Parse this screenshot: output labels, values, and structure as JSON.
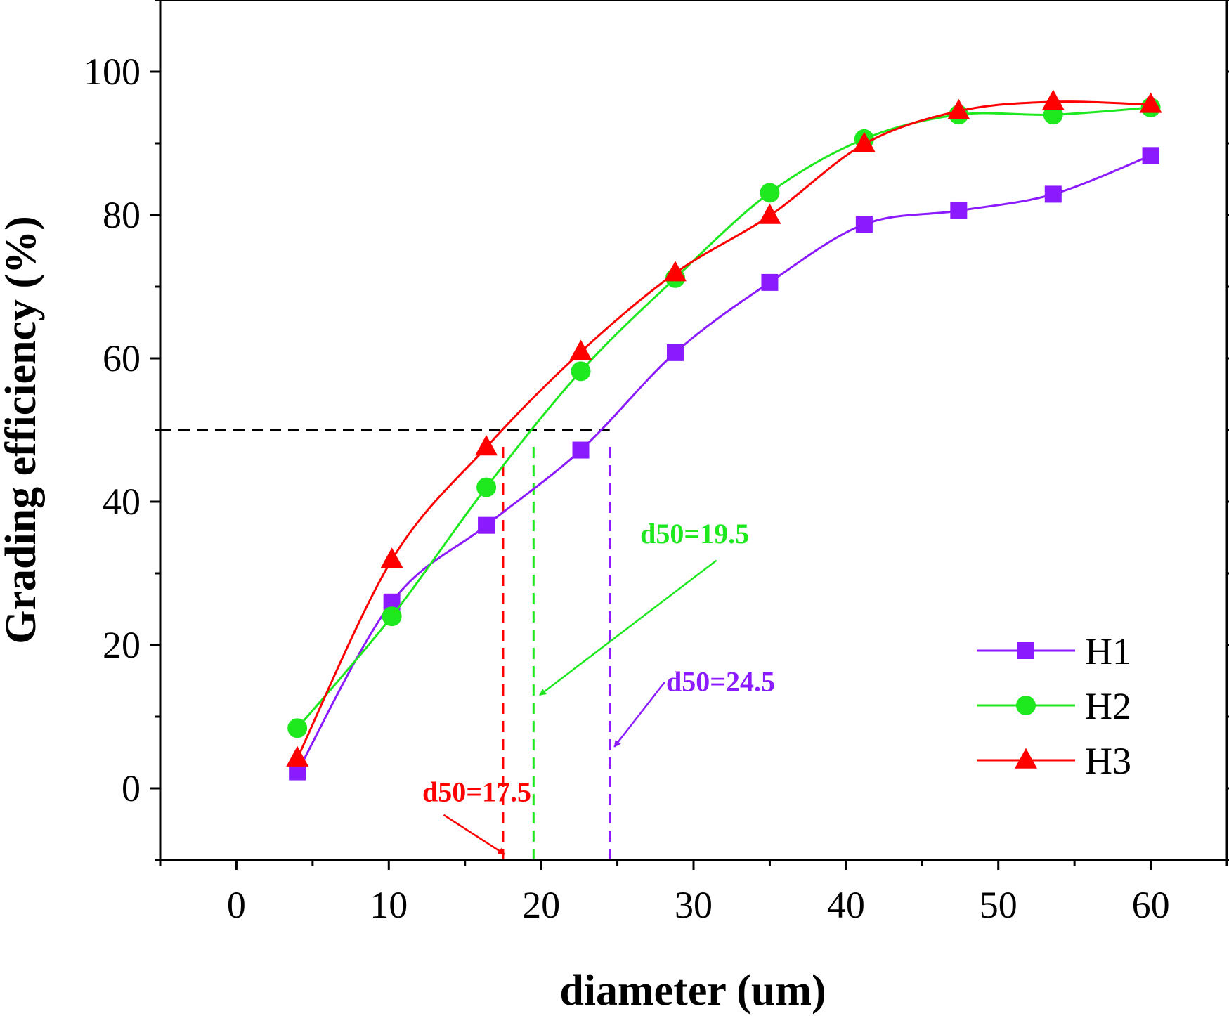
{
  "chart_data": {
    "type": "line",
    "xlabel": "diameter (um)",
    "ylabel": "Grading efficiency (%)",
    "xlim": [
      -5,
      65
    ],
    "ylim": [
      -10,
      110
    ],
    "xticks": [
      0,
      10,
      20,
      30,
      40,
      50,
      60
    ],
    "yticks": [
      0,
      20,
      40,
      60,
      80,
      100
    ],
    "grid": false,
    "legend_position": "bottom-right",
    "series": [
      {
        "name": "H1",
        "color": "#8B1AFF",
        "marker": "square",
        "x": [
          4,
          10.2,
          16.4,
          22.6,
          28.8,
          35,
          41.2,
          47.4,
          53.6,
          60
        ],
        "y": [
          2.3,
          26,
          36.7,
          47.2,
          60.8,
          70.6,
          78.7,
          80.6,
          82.9,
          88.3
        ]
      },
      {
        "name": "H2",
        "color": "#1EE81E",
        "marker": "circle",
        "x": [
          4,
          10.2,
          16.4,
          22.6,
          28.8,
          35,
          41.2,
          47.4,
          53.6,
          60
        ],
        "y": [
          8.4,
          24,
          42,
          58.2,
          71.2,
          83.1,
          90.6,
          94,
          94,
          95
        ]
      },
      {
        "name": "H3",
        "color": "#FF0000",
        "marker": "triangle",
        "x": [
          4,
          10.2,
          16.4,
          22.6,
          28.8,
          35,
          41.2,
          47.4,
          53.6,
          60
        ],
        "y": [
          4.2,
          31.9,
          47.6,
          60.9,
          71.9,
          79.9,
          89.9,
          94.5,
          95.8,
          95.4
        ]
      }
    ],
    "reference_lines": [
      {
        "type": "horizontal",
        "y": 50,
        "x_from": -5,
        "x_to": 24.5,
        "color": "#000000"
      },
      {
        "type": "vertical",
        "x": 17.5,
        "y_from": -10,
        "y_to": 48,
        "color": "#FF0000"
      },
      {
        "type": "vertical",
        "x": 19.5,
        "y_from": -10,
        "y_to": 48,
        "color": "#1EE81E"
      },
      {
        "type": "vertical",
        "x": 24.5,
        "y_from": -10,
        "y_to": 48,
        "color": "#8B1AFF"
      }
    ],
    "annotations": [
      {
        "text": "d50=17.5",
        "color": "#FF0000",
        "label_x": 12.2,
        "label_y": -1.8,
        "arrow_from": [
          13.6,
          -3.7
        ],
        "arrow_to": [
          17.6,
          -9.2
        ]
      },
      {
        "text": "d50=19.5",
        "color": "#1EE81E",
        "label_x": 26.5,
        "label_y": 34.2,
        "arrow_from": [
          31.5,
          31.8
        ],
        "arrow_to": [
          19.9,
          13
        ]
      },
      {
        "text": "d50=24.5",
        "color": "#8B1AFF",
        "label_x": 28.2,
        "label_y": 13.6,
        "arrow_from": [
          28.1,
          14.8
        ],
        "arrow_to": [
          24.8,
          5.8
        ]
      }
    ]
  }
}
